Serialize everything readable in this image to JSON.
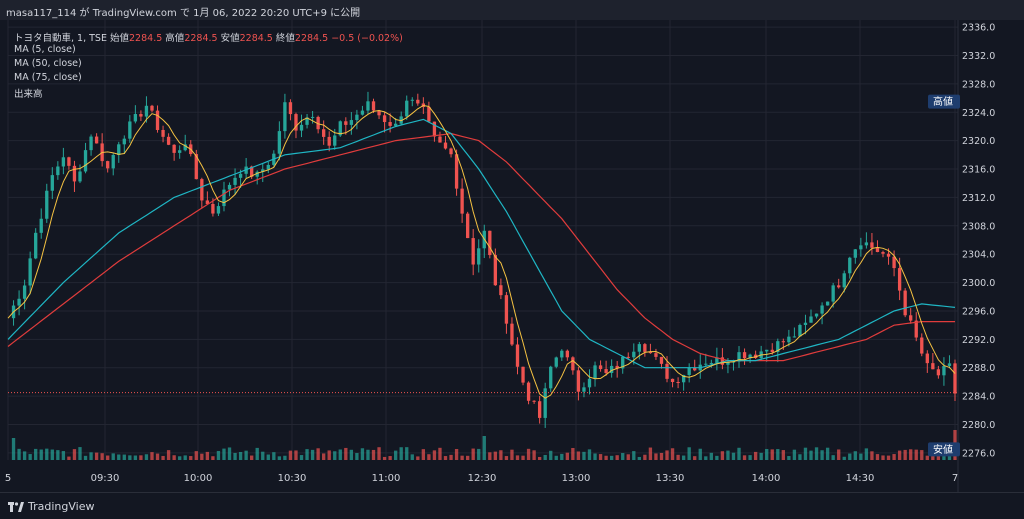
{
  "header": {
    "title": "masa117_114 が TradingView.com で 1月 06, 2022 20:20 UTC+9 に公開"
  },
  "legend": {
    "symbol": "トヨタ自動車, 1, TSE",
    "o_label": "始値",
    "o_val": "2284.5",
    "h_label": "高値",
    "h_val": "2284.5",
    "l_label": "安値",
    "l_val": "2284.5",
    "c_label": "終値",
    "c_val": "2284.5",
    "change": "−0.5 (−0.02%)",
    "ma5": "MA (5, close)",
    "ma50": "MA (50, close)",
    "ma75": "MA (75, close)",
    "volume": "出来高"
  },
  "price_labels": {
    "high": "高値",
    "low": "安値"
  },
  "brand": {
    "name": "TradingView"
  },
  "colors": {
    "up": "#26a69a",
    "down": "#ef5350",
    "ma5": "#f5c242",
    "ma50": "#1fb6c4",
    "ma75": "#e03c3c",
    "grid": "#232632",
    "axis_text": "#d1d4dc"
  },
  "chart_data": {
    "type": "candlestick",
    "ylim": [
      2275,
      2337
    ],
    "yticks": [
      "2276.0",
      "2280.0",
      "2284.0",
      "2288.0",
      "2292.0",
      "2296.0",
      "2300.0",
      "2304.0",
      "2308.0",
      "2312.0",
      "2316.0",
      "2320.0",
      "2324.0",
      "2328.0",
      "2332.0",
      "2336.0"
    ],
    "xticks": [
      "5",
      "09:30",
      "10:00",
      "10:30",
      "11:00",
      "12:30",
      "13:00",
      "13:30",
      "14:00",
      "14:30",
      "7"
    ],
    "high_marker": 2325.5,
    "low_marker": 2276.5,
    "last_price_line": 2284.5,
    "price_path": [
      [
        0,
        2295
      ],
      [
        3,
        2300
      ],
      [
        5,
        2307
      ],
      [
        8,
        2315
      ],
      [
        10,
        2318
      ],
      [
        12,
        2314
      ],
      [
        15,
        2321
      ],
      [
        18,
        2316
      ],
      [
        20,
        2320
      ],
      [
        22,
        2322
      ],
      [
        25,
        2325
      ],
      [
        27,
        2322
      ],
      [
        30,
        2318
      ],
      [
        32,
        2320
      ],
      [
        35,
        2312
      ],
      [
        37,
        2310
      ],
      [
        40,
        2314
      ],
      [
        42,
        2316
      ],
      [
        45,
        2315
      ],
      [
        48,
        2318
      ],
      [
        50,
        2325
      ],
      [
        52,
        2322
      ],
      [
        55,
        2324
      ],
      [
        58,
        2319
      ],
      [
        60,
        2322
      ],
      [
        62,
        2323
      ],
      [
        65,
        2325
      ],
      [
        68,
        2323
      ],
      [
        70,
        2322
      ],
      [
        72,
        2326
      ],
      [
        75,
        2324
      ],
      [
        77,
        2320
      ],
      [
        80,
        2318
      ],
      [
        82,
        2310
      ],
      [
        84,
        2303
      ],
      [
        86,
        2307
      ],
      [
        88,
        2300
      ],
      [
        90,
        2295
      ],
      [
        92,
        2288
      ],
      [
        94,
        2284
      ],
      [
        96,
        2281
      ],
      [
        98,
        2288
      ],
      [
        100,
        2291
      ],
      [
        103,
        2285
      ],
      [
        106,
        2288
      ],
      [
        108,
        2287
      ],
      [
        111,
        2289
      ],
      [
        114,
        2292
      ],
      [
        117,
        2289
      ],
      [
        120,
        2286
      ],
      [
        123,
        2288
      ],
      [
        126,
        2289
      ],
      [
        129,
        2289
      ],
      [
        132,
        2290
      ],
      [
        135,
        2290
      ],
      [
        138,
        2291
      ],
      [
        141,
        2292
      ],
      [
        144,
        2294
      ],
      [
        147,
        2297
      ],
      [
        150,
        2300
      ],
      [
        152,
        2304
      ],
      [
        154,
        2306
      ],
      [
        156,
        2305
      ],
      [
        158,
        2304
      ],
      [
        160,
        2302
      ],
      [
        162,
        2296
      ],
      [
        164,
        2292
      ],
      [
        166,
        2288
      ],
      [
        168,
        2287
      ],
      [
        170,
        2288
      ],
      [
        171,
        2284.5
      ]
    ],
    "ma50": [
      [
        0,
        2292
      ],
      [
        10,
        2300
      ],
      [
        20,
        2307
      ],
      [
        30,
        2312
      ],
      [
        40,
        2315
      ],
      [
        50,
        2318
      ],
      [
        60,
        2319
      ],
      [
        70,
        2322
      ],
      [
        75,
        2323
      ],
      [
        80,
        2321
      ],
      [
        85,
        2316
      ],
      [
        90,
        2310
      ],
      [
        95,
        2303
      ],
      [
        100,
        2296
      ],
      [
        105,
        2292
      ],
      [
        110,
        2290
      ],
      [
        115,
        2288
      ],
      [
        120,
        2288
      ],
      [
        125,
        2288
      ],
      [
        130,
        2289
      ],
      [
        135,
        2289
      ],
      [
        140,
        2290
      ],
      [
        145,
        2291
      ],
      [
        150,
        2292
      ],
      [
        155,
        2294
      ],
      [
        160,
        2296
      ],
      [
        165,
        2297
      ],
      [
        171,
        2296.5
      ]
    ],
    "ma75": [
      [
        0,
        2291
      ],
      [
        10,
        2297
      ],
      [
        20,
        2303
      ],
      [
        30,
        2308
      ],
      [
        40,
        2313
      ],
      [
        50,
        2316
      ],
      [
        60,
        2318
      ],
      [
        70,
        2320
      ],
      [
        80,
        2321
      ],
      [
        85,
        2320
      ],
      [
        90,
        2317
      ],
      [
        95,
        2313
      ],
      [
        100,
        2309
      ],
      [
        105,
        2304
      ],
      [
        110,
        2299
      ],
      [
        115,
        2295
      ],
      [
        120,
        2292
      ],
      [
        125,
        2290
      ],
      [
        130,
        2289
      ],
      [
        135,
        2289
      ],
      [
        140,
        2289
      ],
      [
        145,
        2290
      ],
      [
        150,
        2291
      ],
      [
        155,
        2292
      ],
      [
        160,
        2294
      ],
      [
        165,
        2294.5
      ],
      [
        171,
        2294.5
      ]
    ]
  }
}
